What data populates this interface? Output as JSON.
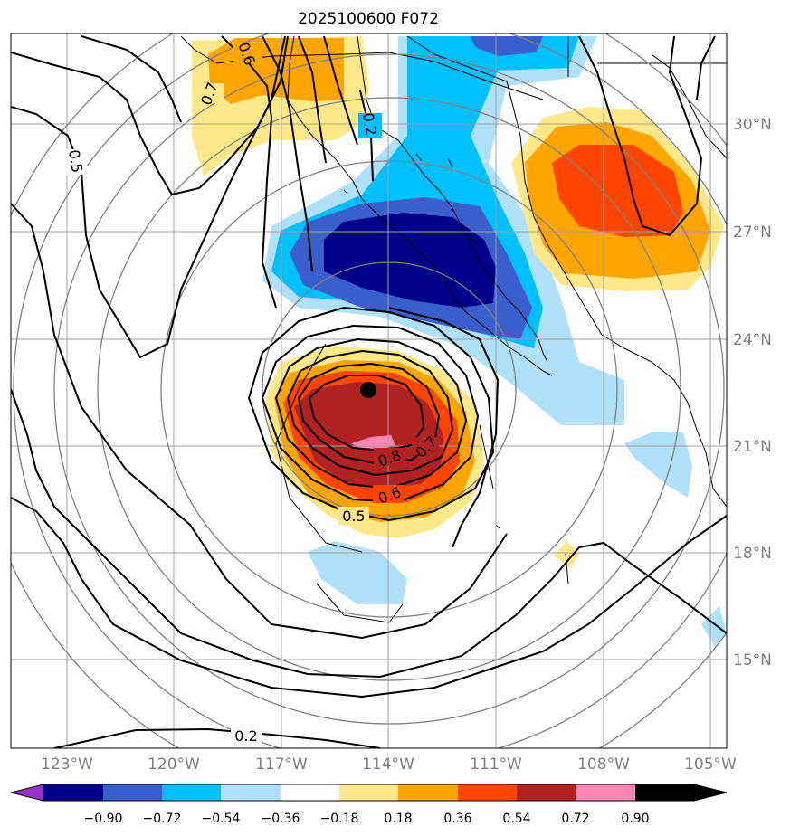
{
  "title": "2025100600 F072",
  "grid": {
    "lat_labels": [
      "30°N",
      "27°N",
      "24°N",
      "21°N",
      "18°N",
      "15°N"
    ],
    "lon_labels": [
      "123°W",
      "120°W",
      "117°W",
      "114°W",
      "111°W",
      "108°W",
      "105°W"
    ]
  },
  "contour_labels": [
    "0.7",
    "0.6",
    "0.5",
    "0.2",
    "0.8",
    "0.7",
    "0.6",
    "0.5",
    "0.2"
  ],
  "storm_center": {
    "lon": -114.6,
    "lat": 22.5
  },
  "colorbar": {
    "ticks": [
      "−0.90",
      "−0.72",
      "−0.54",
      "−0.36",
      "−0.18",
      "0.18",
      "0.36",
      "0.54",
      "0.72",
      "0.90"
    ],
    "colors": [
      "#9932cc",
      "#00008b",
      "#3a5fcd",
      "#00bfff",
      "#b0e0fa",
      "#ffffff",
      "#ffe88a",
      "#ffa500",
      "#ff4500",
      "#b22222",
      "#ff85b3"
    ]
  },
  "fill_colors": {
    "neg_light": "#b0e0fa",
    "neg_mid": "#00bfff",
    "neg_strong": "#3a5fcd",
    "neg_max": "#00008b",
    "pos_light": "#ffe88a",
    "pos_mid": "#ffa500",
    "pos_strong": "#ff4500",
    "pos_max": "#b22222",
    "pos_extreme": "#ff85b3"
  }
}
